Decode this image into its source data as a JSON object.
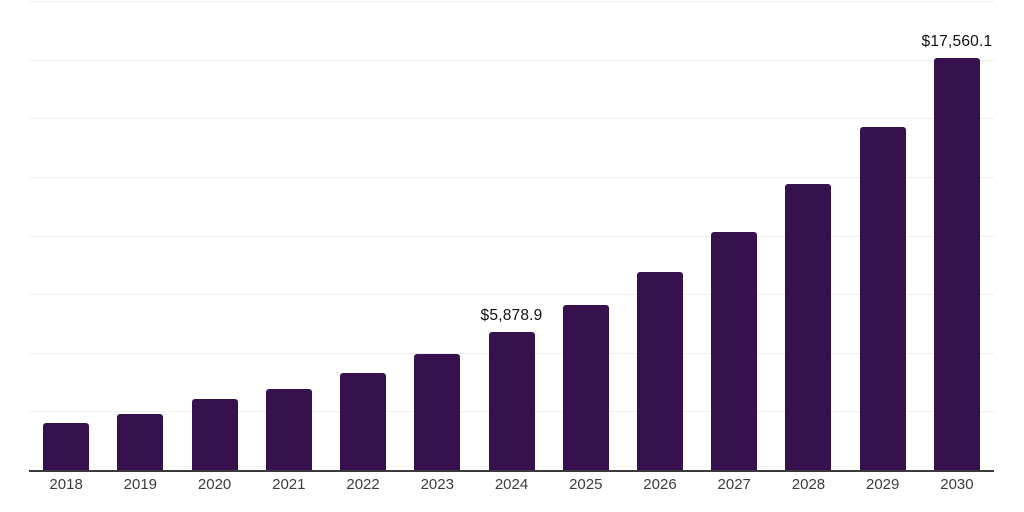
{
  "chart_data": {
    "type": "bar",
    "title": "",
    "xlabel": "",
    "ylabel": "",
    "categories": [
      "2018",
      "2019",
      "2020",
      "2021",
      "2022",
      "2023",
      "2024",
      "2025",
      "2026",
      "2027",
      "2028",
      "2029",
      "2030"
    ],
    "values": [
      2000,
      2370,
      3050,
      3450,
      4130,
      4940,
      5878.9,
      7054.7,
      8465.6,
      10158.8,
      12190.5,
      14628.6,
      17560.1
    ],
    "data_labels": {
      "2024": "$5,878.9",
      "2030": "$17,560.1"
    },
    "ylim": [
      0,
      20000
    ],
    "gridline_interval": 2500,
    "grid": true,
    "legend": false,
    "y_axis_tick_labels_visible": false,
    "bar_color": "#36114d",
    "gridline_color": "#efefef",
    "axis_line_color": "#3a3a3a",
    "tick_label_color": "#3c3c3c",
    "data_label_color": "#101010"
  }
}
